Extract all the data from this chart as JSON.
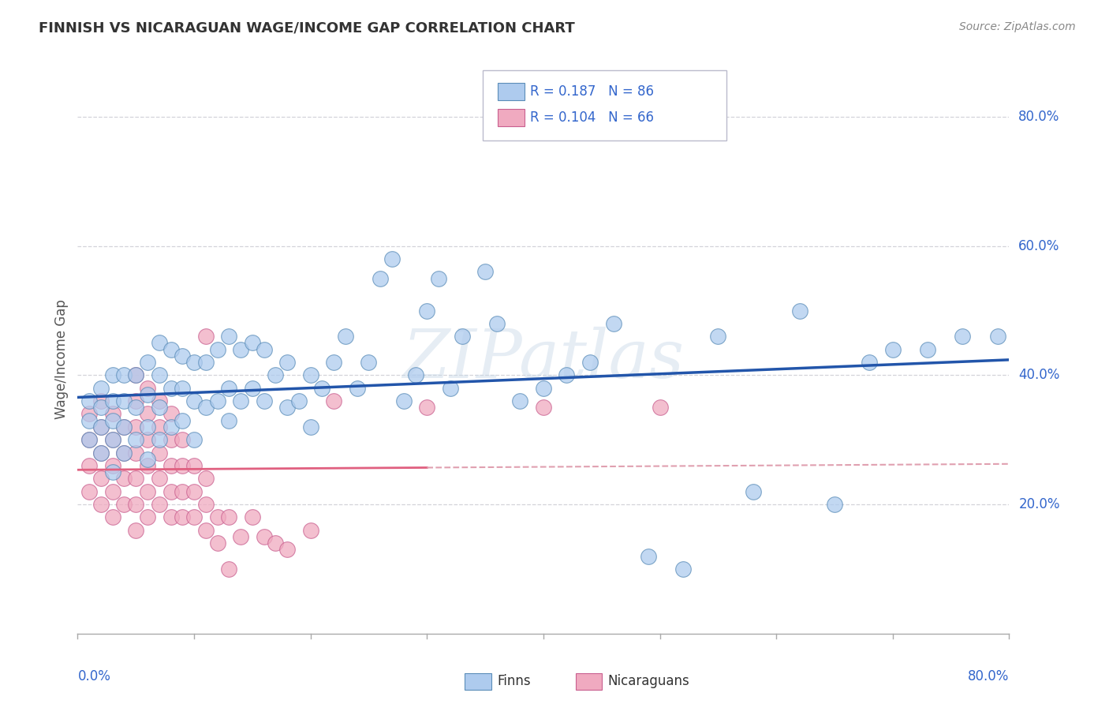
{
  "title": "FINNISH VS NICARAGUAN WAGE/INCOME GAP CORRELATION CHART",
  "source": "Source: ZipAtlas.com",
  "ylabel": "Wage/Income Gap",
  "xmin": 0.0,
  "xmax": 0.8,
  "ymin": 0.0,
  "ymax": 0.85,
  "yticks": [
    0.2,
    0.4,
    0.6,
    0.8
  ],
  "ytick_labels": [
    "20.0%",
    "40.0%",
    "60.0%",
    "80.0%"
  ],
  "watermark": "ZIPatlas",
  "legend_r_finns": "R = 0.187",
  "legend_n_finns": "N = 86",
  "legend_r_nicaraguans": "R = 0.104",
  "legend_n_nicaraguans": "N = 66",
  "finns_color": "#aecbee",
  "finns_edge_color": "#5b8db8",
  "nicaraguans_color": "#f0aac0",
  "nicaraguans_edge_color": "#c96090",
  "trend_finns_color": "#2255aa",
  "trend_nicaraguans_solid_color": "#e06080",
  "trend_nicaraguans_dashed_color": "#e0a0b0",
  "background_color": "#ffffff",
  "grid_color": "#c8c8d0",
  "tick_color": "#3366cc",
  "title_color": "#333333",
  "axis_label_color": "#555555",
  "finns_scatter_x": [
    0.01,
    0.01,
    0.01,
    0.02,
    0.02,
    0.02,
    0.02,
    0.03,
    0.03,
    0.03,
    0.03,
    0.03,
    0.04,
    0.04,
    0.04,
    0.04,
    0.05,
    0.05,
    0.05,
    0.06,
    0.06,
    0.06,
    0.06,
    0.07,
    0.07,
    0.07,
    0.07,
    0.08,
    0.08,
    0.08,
    0.09,
    0.09,
    0.09,
    0.1,
    0.1,
    0.1,
    0.11,
    0.11,
    0.12,
    0.12,
    0.13,
    0.13,
    0.13,
    0.14,
    0.14,
    0.15,
    0.15,
    0.16,
    0.16,
    0.17,
    0.18,
    0.18,
    0.19,
    0.2,
    0.2,
    0.21,
    0.22,
    0.23,
    0.24,
    0.25,
    0.26,
    0.27,
    0.28,
    0.29,
    0.3,
    0.31,
    0.32,
    0.33,
    0.35,
    0.36,
    0.38,
    0.4,
    0.42,
    0.44,
    0.46,
    0.49,
    0.52,
    0.55,
    0.58,
    0.62,
    0.65,
    0.68,
    0.7,
    0.73,
    0.76,
    0.79
  ],
  "finns_scatter_y": [
    0.3,
    0.33,
    0.36,
    0.28,
    0.32,
    0.35,
    0.38,
    0.25,
    0.3,
    0.33,
    0.36,
    0.4,
    0.28,
    0.32,
    0.36,
    0.4,
    0.3,
    0.35,
    0.4,
    0.27,
    0.32,
    0.37,
    0.42,
    0.3,
    0.35,
    0.4,
    0.45,
    0.32,
    0.38,
    0.44,
    0.33,
    0.38,
    0.43,
    0.3,
    0.36,
    0.42,
    0.35,
    0.42,
    0.36,
    0.44,
    0.33,
    0.38,
    0.46,
    0.36,
    0.44,
    0.38,
    0.45,
    0.36,
    0.44,
    0.4,
    0.35,
    0.42,
    0.36,
    0.32,
    0.4,
    0.38,
    0.42,
    0.46,
    0.38,
    0.42,
    0.55,
    0.58,
    0.36,
    0.4,
    0.5,
    0.55,
    0.38,
    0.46,
    0.56,
    0.48,
    0.36,
    0.38,
    0.4,
    0.42,
    0.48,
    0.12,
    0.1,
    0.46,
    0.22,
    0.5,
    0.2,
    0.42,
    0.44,
    0.44,
    0.46,
    0.46
  ],
  "nicaraguans_scatter_x": [
    0.01,
    0.01,
    0.01,
    0.01,
    0.02,
    0.02,
    0.02,
    0.02,
    0.02,
    0.03,
    0.03,
    0.03,
    0.03,
    0.03,
    0.04,
    0.04,
    0.04,
    0.04,
    0.05,
    0.05,
    0.05,
    0.05,
    0.05,
    0.05,
    0.05,
    0.06,
    0.06,
    0.06,
    0.06,
    0.06,
    0.06,
    0.07,
    0.07,
    0.07,
    0.07,
    0.07,
    0.08,
    0.08,
    0.08,
    0.08,
    0.08,
    0.09,
    0.09,
    0.09,
    0.09,
    0.1,
    0.1,
    0.1,
    0.11,
    0.11,
    0.11,
    0.11,
    0.12,
    0.12,
    0.13,
    0.13,
    0.14,
    0.15,
    0.16,
    0.17,
    0.18,
    0.2,
    0.22,
    0.3,
    0.4,
    0.5
  ],
  "nicaraguans_scatter_y": [
    0.22,
    0.26,
    0.3,
    0.34,
    0.2,
    0.24,
    0.28,
    0.32,
    0.36,
    0.18,
    0.22,
    0.26,
    0.3,
    0.34,
    0.2,
    0.24,
    0.28,
    0.32,
    0.16,
    0.2,
    0.24,
    0.28,
    0.32,
    0.36,
    0.4,
    0.18,
    0.22,
    0.26,
    0.3,
    0.34,
    0.38,
    0.2,
    0.24,
    0.28,
    0.32,
    0.36,
    0.18,
    0.22,
    0.26,
    0.3,
    0.34,
    0.18,
    0.22,
    0.26,
    0.3,
    0.18,
    0.22,
    0.26,
    0.16,
    0.2,
    0.24,
    0.46,
    0.18,
    0.14,
    0.18,
    0.1,
    0.15,
    0.18,
    0.15,
    0.14,
    0.13,
    0.16,
    0.36,
    0.35,
    0.35,
    0.35
  ]
}
